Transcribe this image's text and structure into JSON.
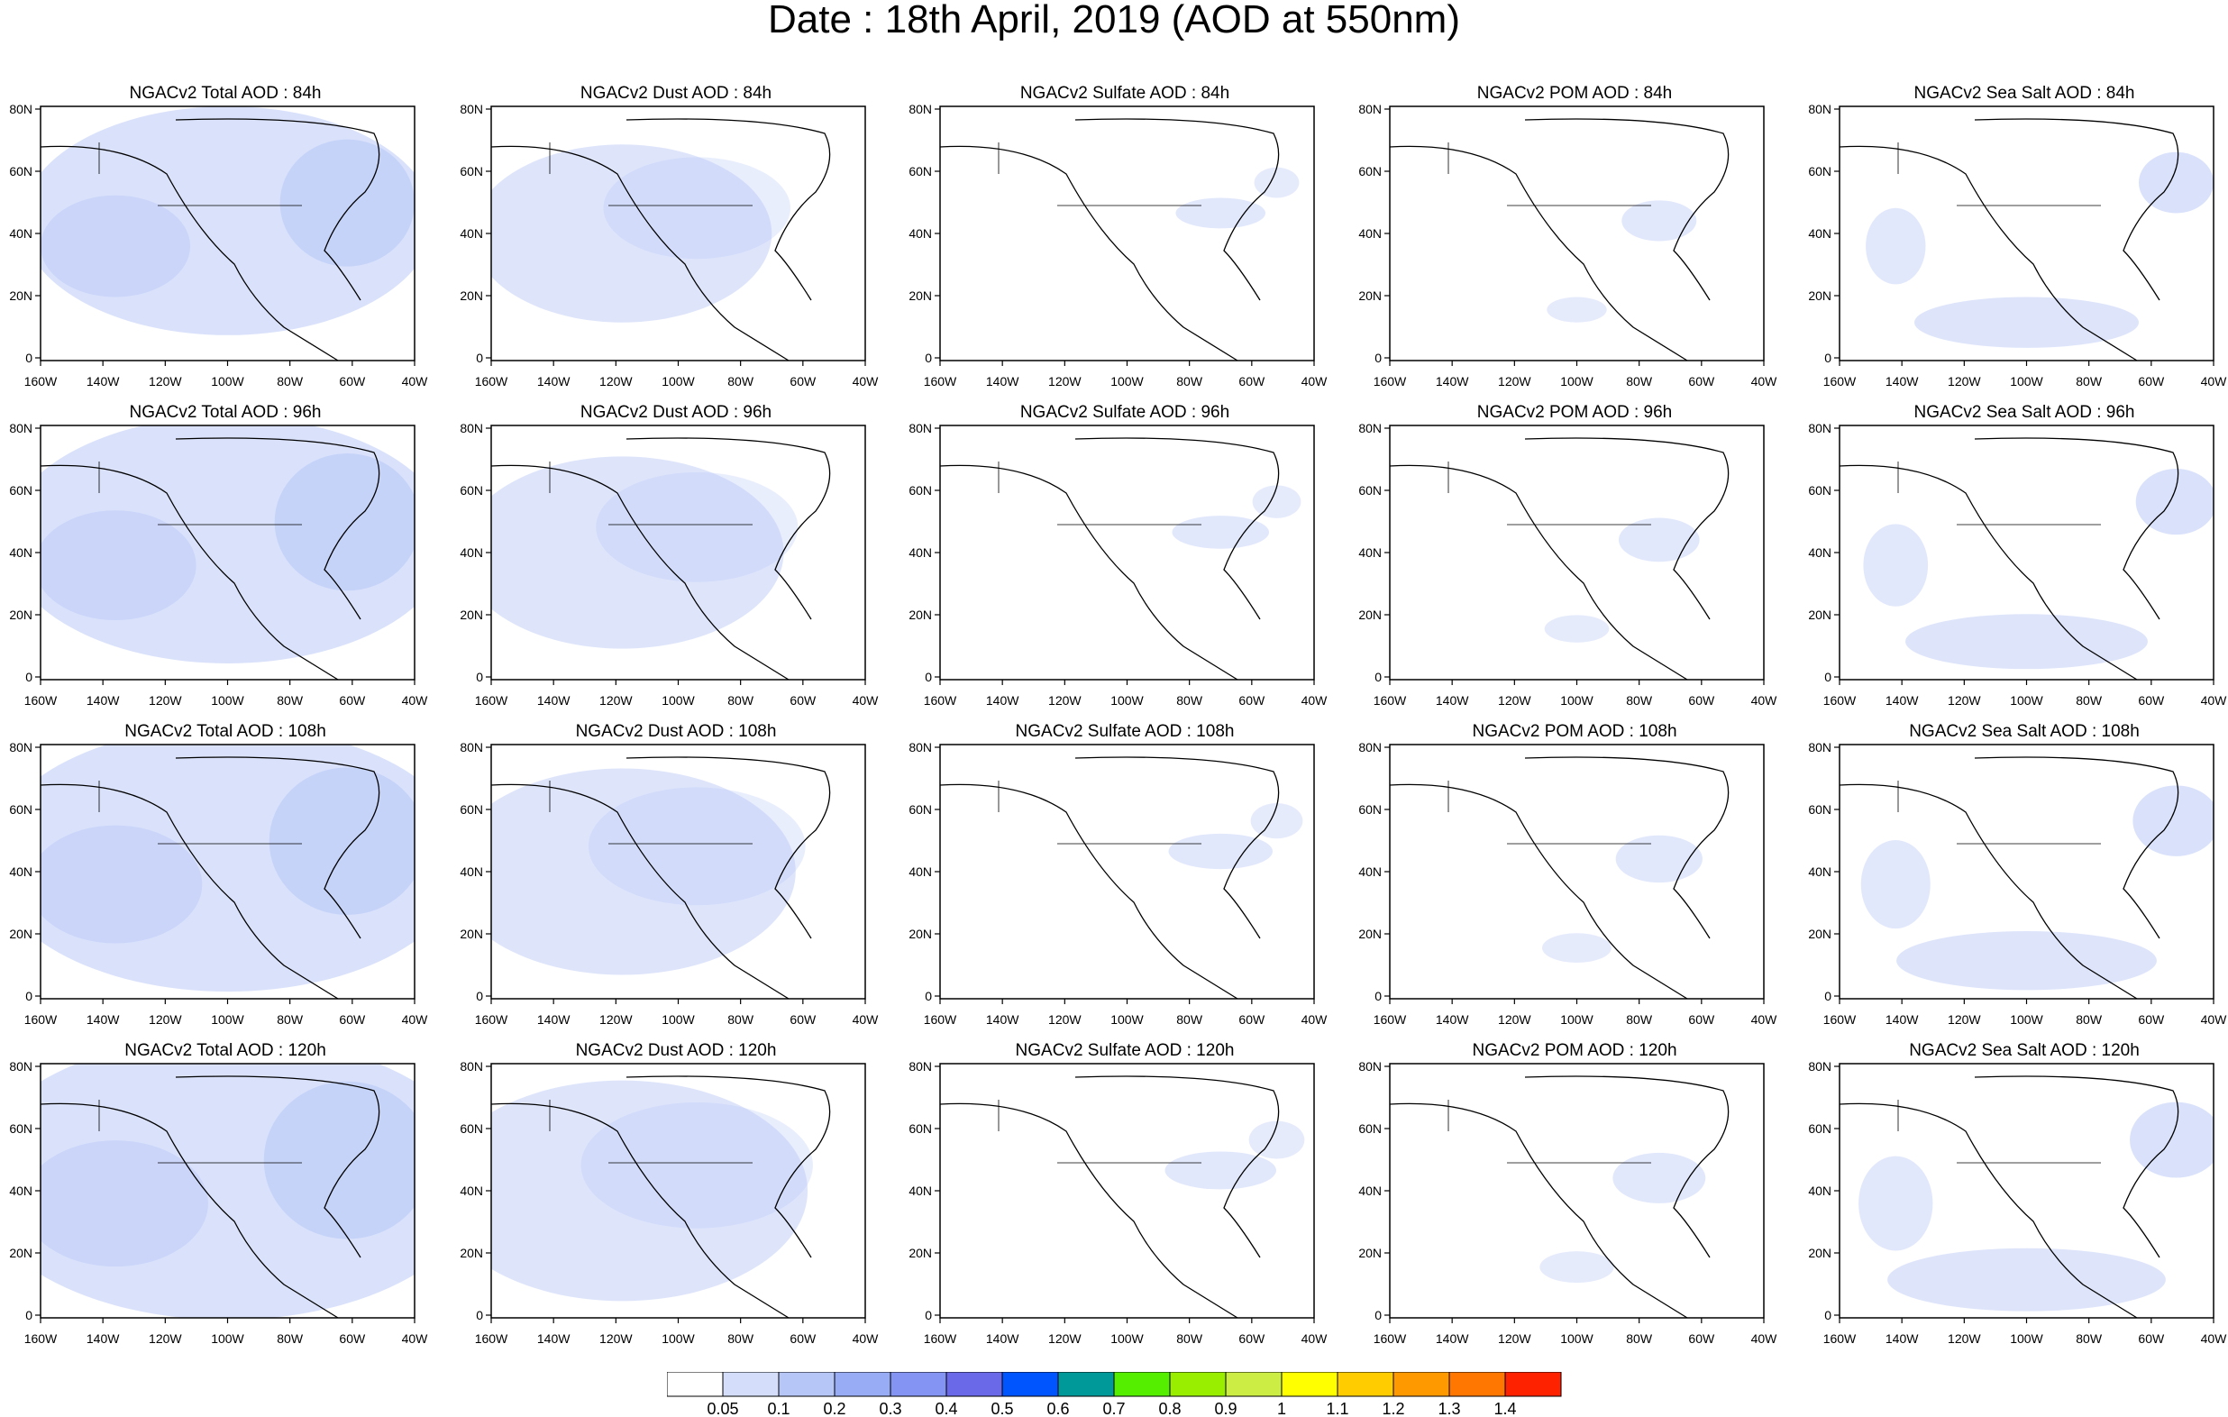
{
  "title": "Date : 18th April, 2019 (AOD at 550nm)",
  "panels": [
    [
      "NGACv2 Total AOD : 84h",
      "NGACv2 Dust AOD : 84h",
      "NGACv2 Sulfate AOD : 84h",
      "NGACv2 POM AOD : 84h",
      "NGACv2 Sea Salt AOD : 84h"
    ],
    [
      "NGACv2 Total AOD : 96h",
      "NGACv2 Dust AOD : 96h",
      "NGACv2 Sulfate AOD : 96h",
      "NGACv2 POM AOD : 96h",
      "NGACv2 Sea Salt AOD : 96h"
    ],
    [
      "NGACv2 Total AOD : 108h",
      "NGACv2 Dust AOD : 108h",
      "NGACv2 Sulfate AOD : 108h",
      "NGACv2 POM AOD : 108h",
      "NGACv2 Sea Salt AOD : 108h"
    ],
    [
      "NGACv2 Total AOD : 120h",
      "NGACv2 Dust AOD : 120h",
      "NGACv2 Sulfate AOD : 120h",
      "NGACv2 POM AOD : 120h",
      "NGACv2 Sea Salt  AOD : 120h"
    ]
  ],
  "lat_ticks": [
    "80N",
    "60N",
    "40N",
    "20N",
    "0"
  ],
  "lon_ticks": [
    "160W",
    "140W",
    "120W",
    "100W",
    "80W",
    "60W",
    "40W"
  ],
  "colorbar": {
    "labels": [
      "0.05",
      "0.1",
      "0.2",
      "0.3",
      "0.4",
      "0.5",
      "0.6",
      "0.7",
      "0.8",
      "0.9",
      "1",
      "1.1",
      "1.2",
      "1.3",
      "1.4"
    ],
    "colors": [
      "#ffffff",
      "#d4defa",
      "#b6c6f7",
      "#98acf5",
      "#8494f2",
      "#6a6ae8",
      "#0055ff",
      "#009999",
      "#55ee00",
      "#99ee00",
      "#ccee44",
      "#ffff00",
      "#ffcc00",
      "#ff9900",
      "#ff7700",
      "#ff2200"
    ]
  }
}
